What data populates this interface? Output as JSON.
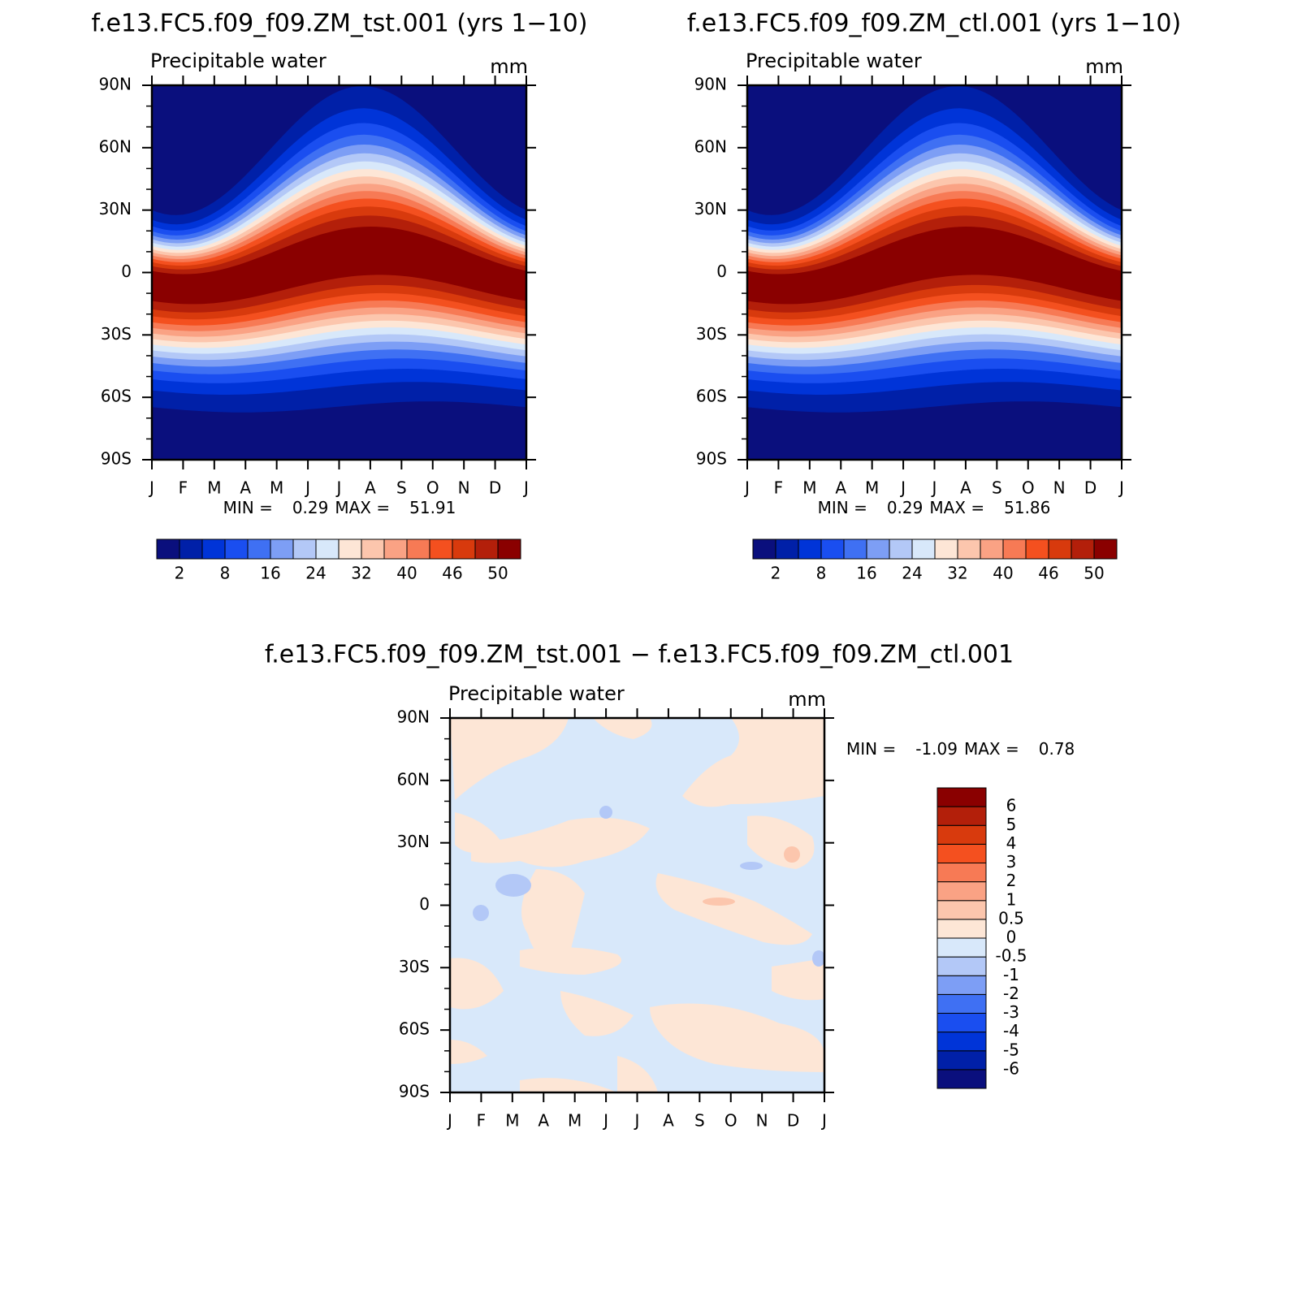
{
  "panels": [
    {
      "title": "f.e13.FC5.f09_f09.ZM_tst.001 (yrs 1−10)",
      "subtitle": "Precipitable water",
      "units": "mm",
      "yticks": [
        "90N",
        "60N",
        "30N",
        "0",
        "30S",
        "60S",
        "90S"
      ],
      "xticks": [
        "J",
        "F",
        "M",
        "A",
        "M",
        "J",
        "J",
        "A",
        "S",
        "O",
        "N",
        "D",
        "J"
      ],
      "min_label": "MIN =",
      "min": 0.29,
      "max_label": "MAX =",
      "max": 51.91,
      "colorbar": {
        "colors": [
          "#0a0f7d",
          "#0020a8",
          "#0034d8",
          "#1a4ef0",
          "#3f70f3",
          "#7d9ef5",
          "#b3c8f7",
          "#d8e8fa",
          "#fde6d6",
          "#fcc6ad",
          "#faa284",
          "#f77a55",
          "#f4501f",
          "#d83a0d",
          "#b31f0a",
          "#8a0000"
        ],
        "labels": [
          2,
          8,
          16,
          24,
          32,
          40,
          46,
          50
        ]
      }
    },
    {
      "title": "f.e13.FC5.f09_f09.ZM_ctl.001 (yrs 1−10)",
      "subtitle": "Precipitable water",
      "units": "mm",
      "yticks": [
        "90N",
        "60N",
        "30N",
        "0",
        "30S",
        "60S",
        "90S"
      ],
      "xticks": [
        "J",
        "F",
        "M",
        "A",
        "M",
        "J",
        "J",
        "A",
        "S",
        "O",
        "N",
        "D",
        "J"
      ],
      "min_label": "MIN =",
      "min": 0.29,
      "max_label": "MAX =",
      "max": 51.86,
      "colorbar": {
        "colors": [
          "#0a0f7d",
          "#0020a8",
          "#0034d8",
          "#1a4ef0",
          "#3f70f3",
          "#7d9ef5",
          "#b3c8f7",
          "#d8e8fa",
          "#fde6d6",
          "#fcc6ad",
          "#faa284",
          "#f77a55",
          "#f4501f",
          "#d83a0d",
          "#b31f0a",
          "#8a0000"
        ],
        "labels": [
          2,
          8,
          16,
          24,
          32,
          40,
          46,
          50
        ]
      }
    },
    {
      "title": "f.e13.FC5.f09_f09.ZM_tst.001 − f.e13.FC5.f09_f09.ZM_ctl.001",
      "subtitle": "Precipitable water",
      "units": "mm",
      "yticks": [
        "90N",
        "60N",
        "30N",
        "0",
        "30S",
        "60S",
        "90S"
      ],
      "xticks": [
        "J",
        "F",
        "M",
        "A",
        "M",
        "J",
        "J",
        "A",
        "S",
        "O",
        "N",
        "D",
        "J"
      ],
      "min_label": "MIN =",
      "min": -1.09,
      "max_label": "MAX =",
      "max": 0.78,
      "colorbar": {
        "colors": [
          "#0a0f7d",
          "#0020a8",
          "#0034d8",
          "#1a4ef0",
          "#3f70f3",
          "#7d9ef5",
          "#b3c8f7",
          "#d8e8fa",
          "#fde6d6",
          "#fcc6ad",
          "#faa284",
          "#f77a55",
          "#f4501f",
          "#d83a0d",
          "#b31f0a",
          "#8a0000"
        ],
        "labels": [
          -6,
          -5,
          -4,
          -3,
          -2,
          -1,
          -0.5,
          0,
          0.5,
          1,
          2,
          3,
          4,
          5,
          6
        ]
      }
    }
  ]
}
